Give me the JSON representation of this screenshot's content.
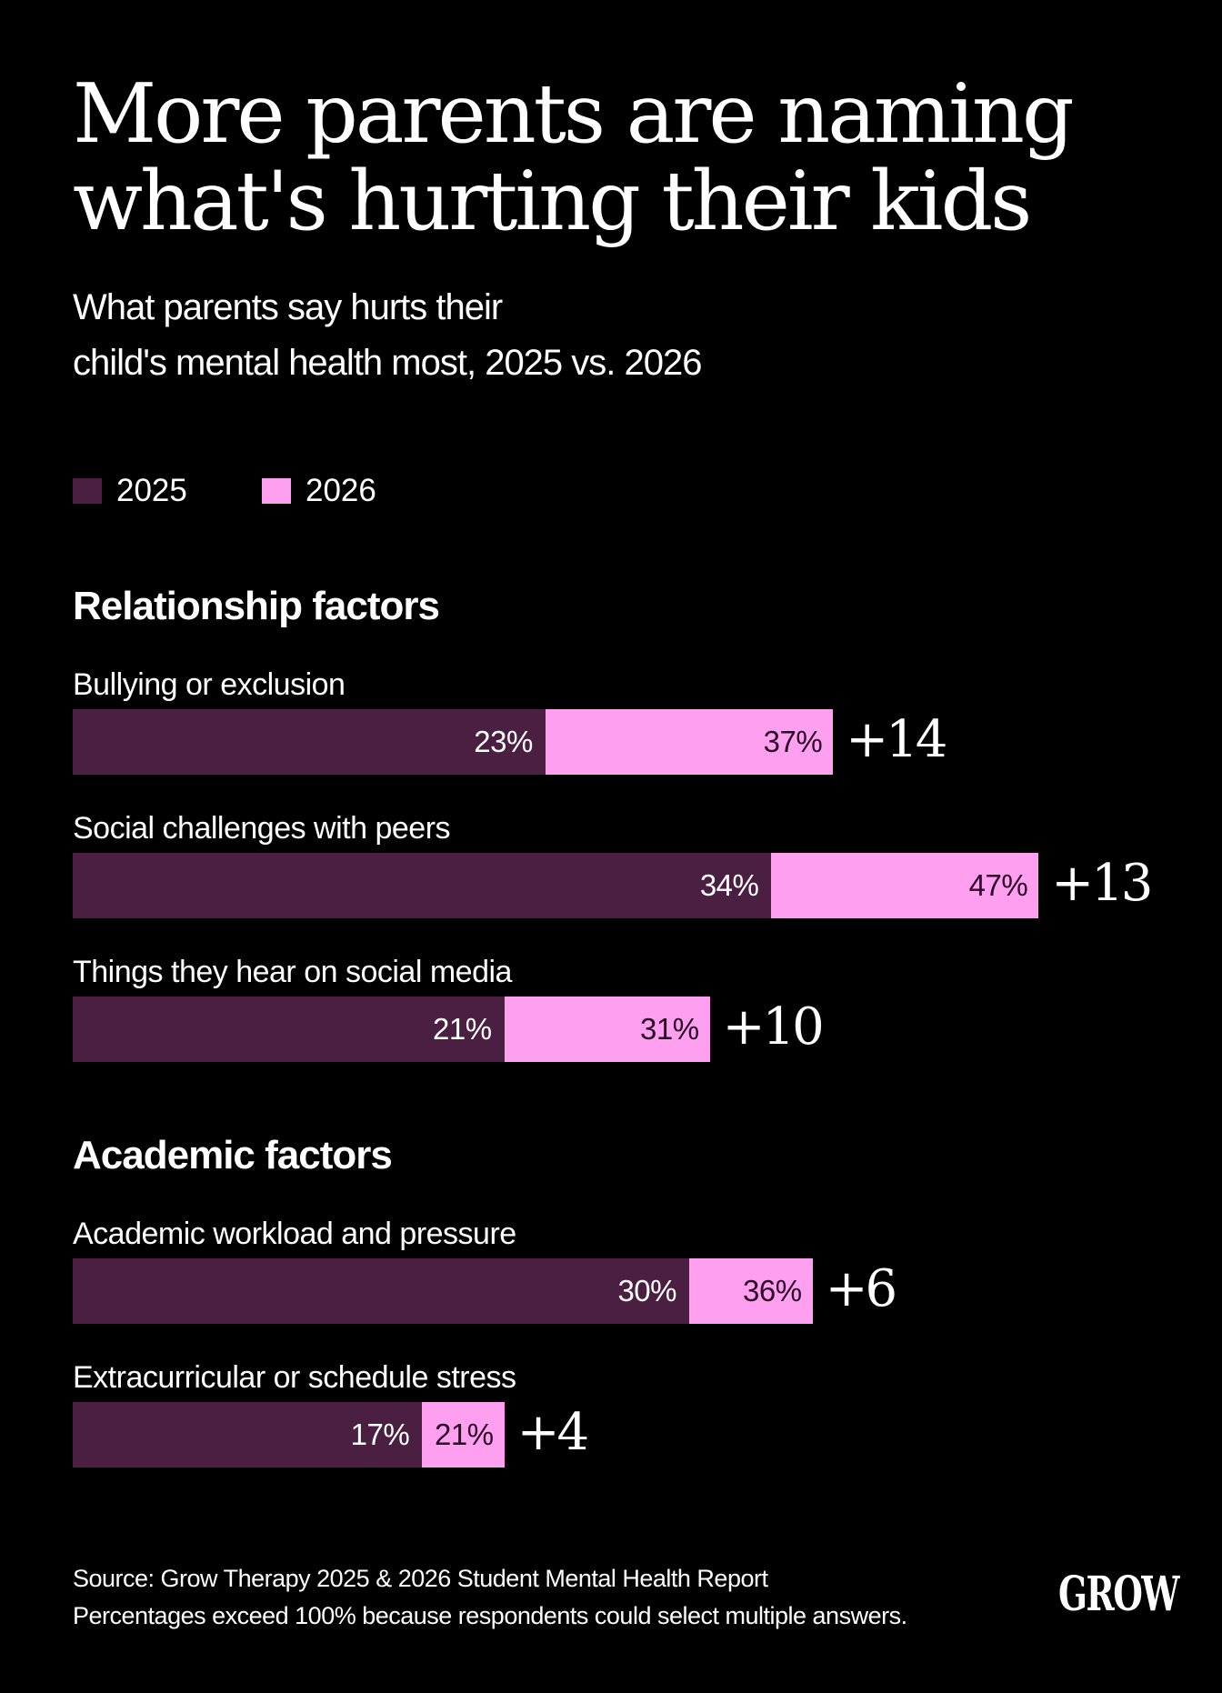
{
  "title": {
    "line1": "More parents are naming",
    "line2": "what's hurting their kids"
  },
  "subtitle": {
    "line1": "What parents say hurts their",
    "line2": "child's mental health most, 2025 vs. 2026"
  },
  "legend": [
    {
      "label": "2025",
      "color": "#4a1f42"
    },
    {
      "label": "2026",
      "color": "#ff9ff0"
    }
  ],
  "chart_data": {
    "type": "bar",
    "orientation": "horizontal",
    "series": [
      {
        "name": "2025",
        "color": "#4a1f42"
      },
      {
        "name": "2026",
        "color": "#ff9ff0"
      }
    ],
    "sections": [
      {
        "title": "Relationship factors",
        "items": [
          {
            "label": "Bullying or exclusion",
            "v2025": 23,
            "v2026": 37,
            "label2025": "23%",
            "label2026": "37%",
            "delta": "+14"
          },
          {
            "label": "Social challenges with peers",
            "v2025": 34,
            "v2026": 47,
            "label2025": "34%",
            "label2026": "47%",
            "delta": "+13"
          },
          {
            "label": "Things they hear on social media",
            "v2025": 21,
            "v2026": 31,
            "label2025": "21%",
            "label2026": "31%",
            "delta": "+10"
          }
        ]
      },
      {
        "title": "Academic factors",
        "items": [
          {
            "label": "Academic workload and pressure",
            "v2025": 30,
            "v2026": 36,
            "label2025": "30%",
            "label2026": "36%",
            "delta": "+6"
          },
          {
            "label": "Extracurricular or schedule stress",
            "v2025": 17,
            "v2026": 21,
            "label2025": "17%",
            "label2026": "21%",
            "delta": "+4"
          }
        ]
      }
    ]
  },
  "footer": {
    "source": "Source: Grow Therapy 2025 & 2026 Student Mental Health Report",
    "note": "Percentages exceed 100% because respondents could select multiple answers."
  },
  "logo": "GROW"
}
